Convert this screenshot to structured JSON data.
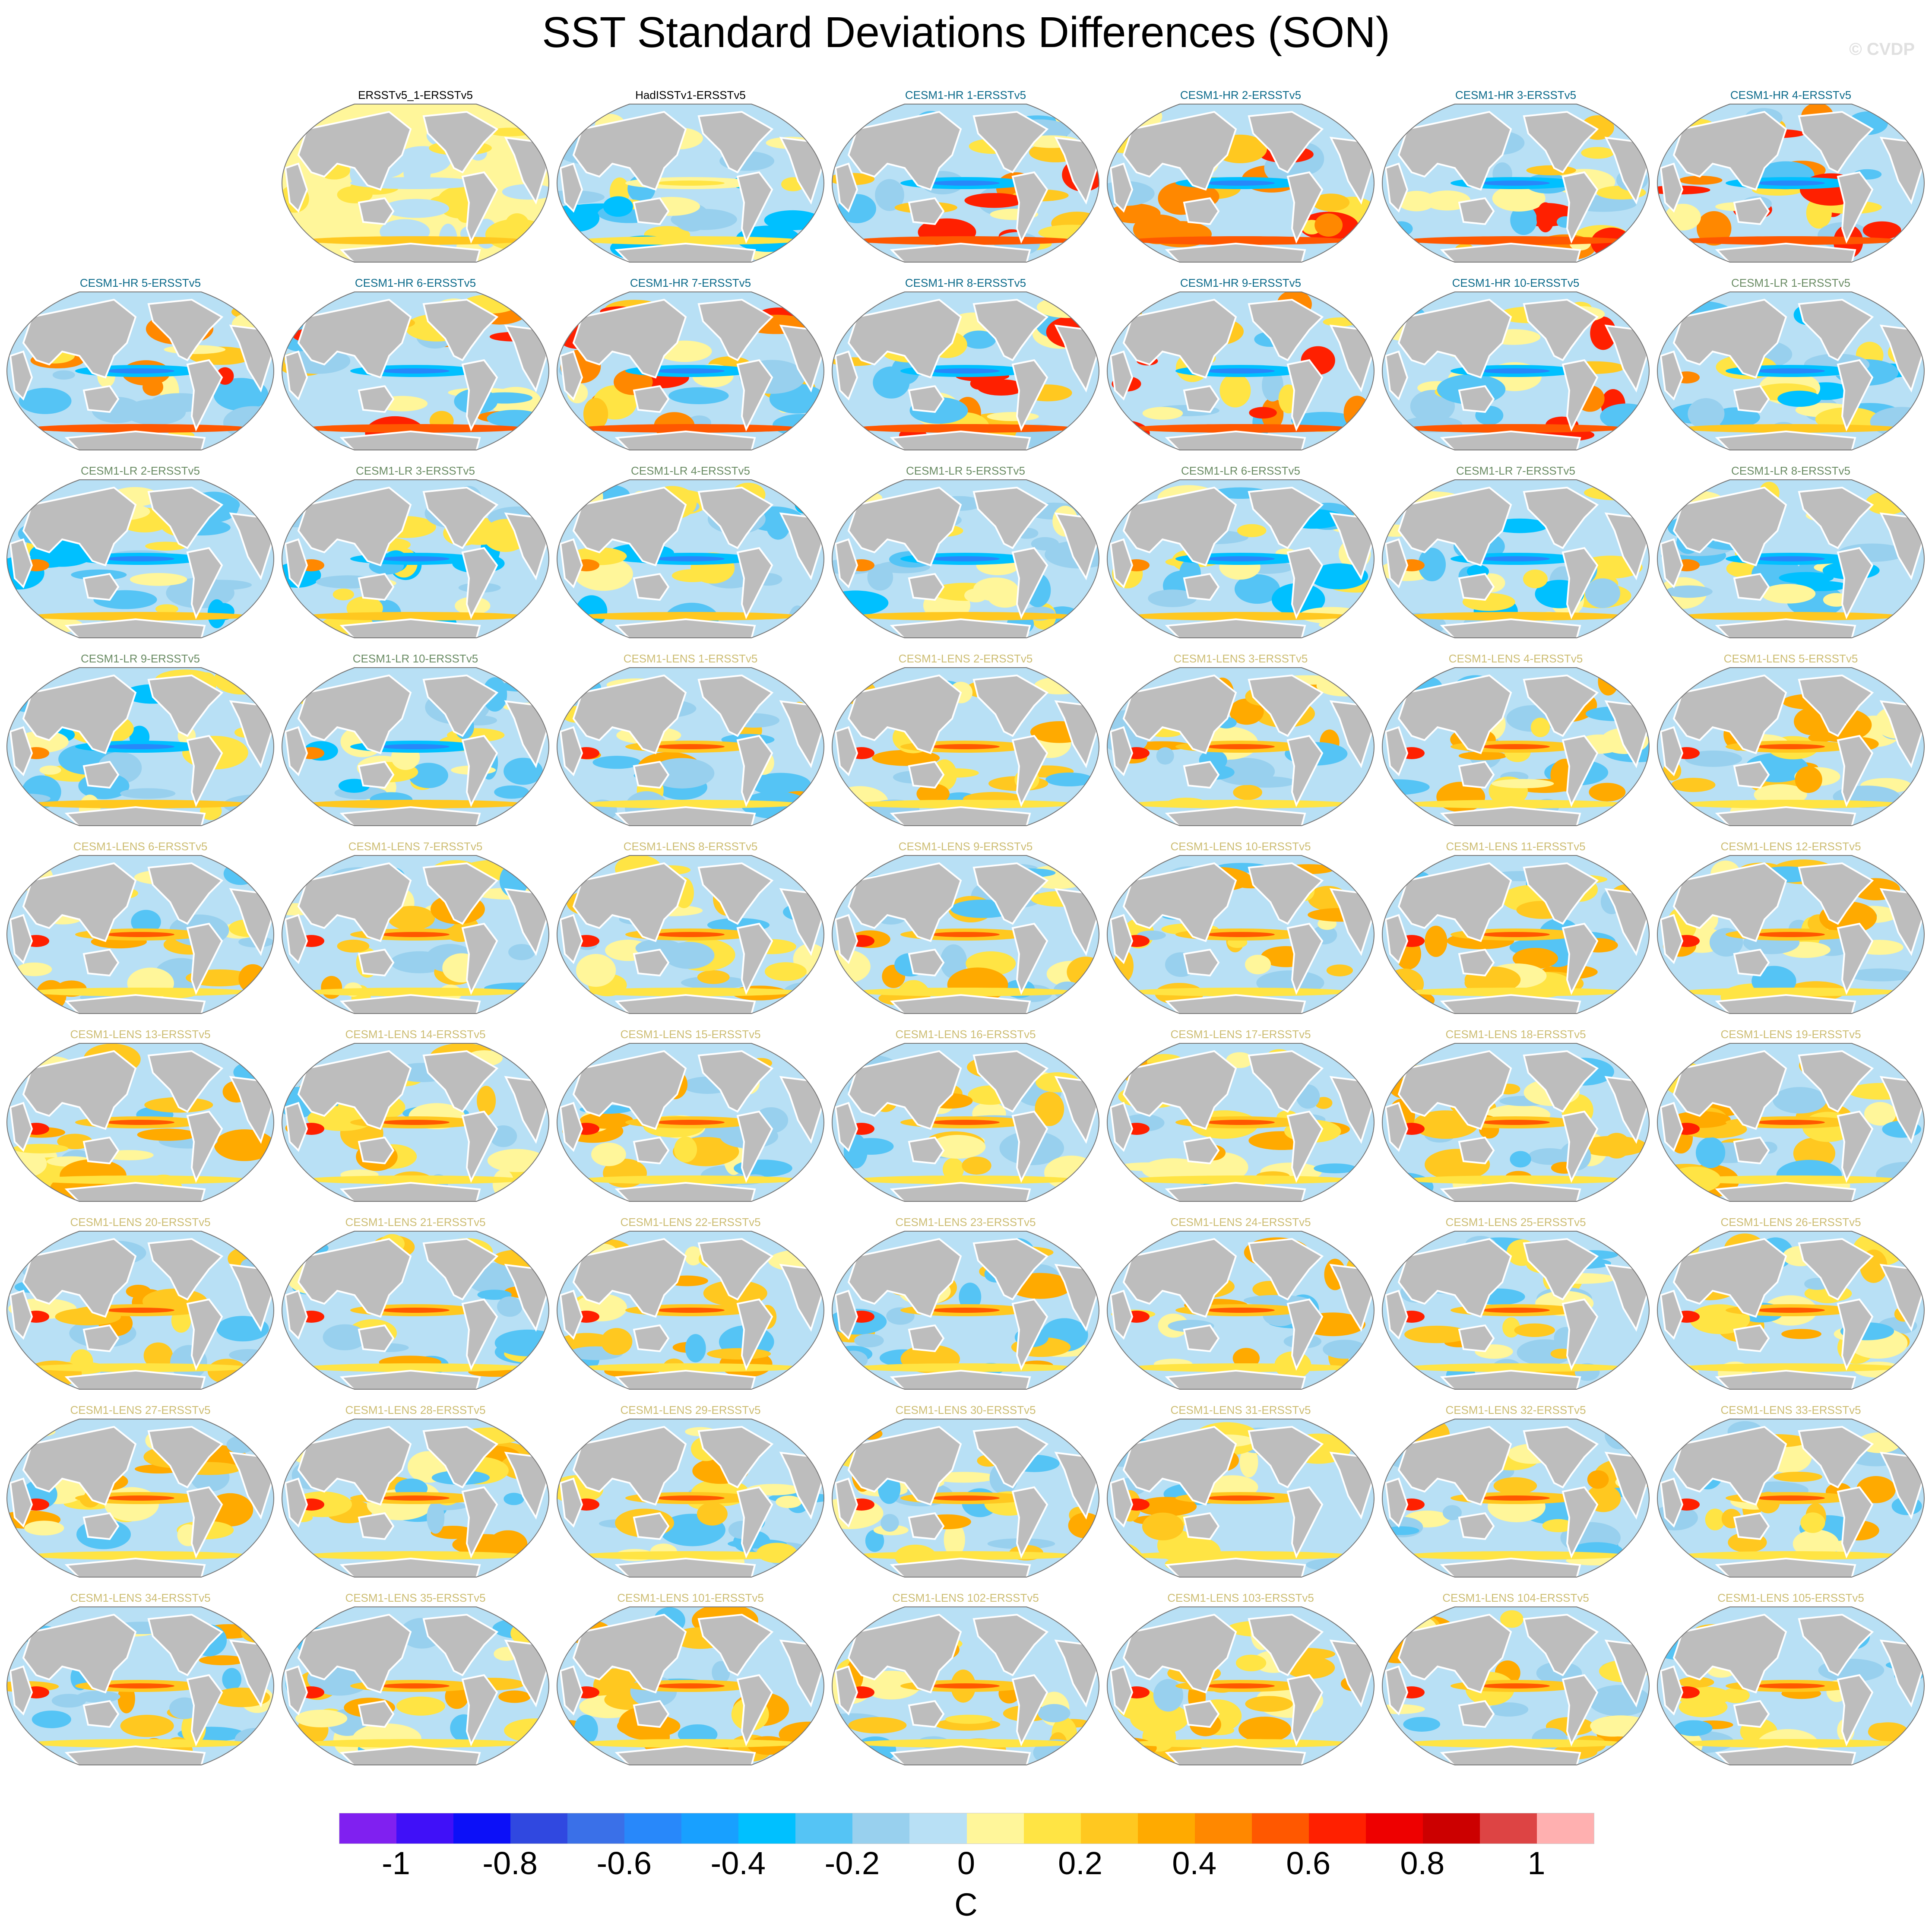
{
  "chart_data": {
    "type": "heatmap",
    "title": "SST Standard Deviations Differences (SON)",
    "watermark": "© CVDP",
    "unit": "C",
    "layout": {
      "columns": 7,
      "rows": 9,
      "first_row_offset": 1
    },
    "groups": {
      "obs": {
        "title_color": "#000000"
      },
      "HR": {
        "title_color": "#0b6a8a"
      },
      "LR": {
        "title_color": "#6a8c64"
      },
      "LENS": {
        "title_color": "#cdbd73"
      }
    },
    "panels": [
      {
        "title": "ERSSTv5_1-ERSSTv5",
        "group": "obs",
        "style": "obs1"
      },
      {
        "title": "HadISSTv1-ERSSTv5",
        "group": "obs",
        "style": "obs2"
      },
      {
        "title": "CESM1-HR 1-ERSSTv5",
        "group": "HR"
      },
      {
        "title": "CESM1-HR 2-ERSSTv5",
        "group": "HR"
      },
      {
        "title": "CESM1-HR 3-ERSSTv5",
        "group": "HR"
      },
      {
        "title": "CESM1-HR 4-ERSSTv5",
        "group": "HR"
      },
      {
        "title": "CESM1-HR 5-ERSSTv5",
        "group": "HR"
      },
      {
        "title": "CESM1-HR 6-ERSSTv5",
        "group": "HR"
      },
      {
        "title": "CESM1-HR 7-ERSSTv5",
        "group": "HR"
      },
      {
        "title": "CESM1-HR 8-ERSSTv5",
        "group": "HR"
      },
      {
        "title": "CESM1-HR 9-ERSSTv5",
        "group": "HR"
      },
      {
        "title": "CESM1-HR 10-ERSSTv5",
        "group": "HR"
      },
      {
        "title": "CESM1-LR 1-ERSSTv5",
        "group": "LR"
      },
      {
        "title": "CESM1-LR 2-ERSSTv5",
        "group": "LR"
      },
      {
        "title": "CESM1-LR 3-ERSSTv5",
        "group": "LR"
      },
      {
        "title": "CESM1-LR 4-ERSSTv5",
        "group": "LR"
      },
      {
        "title": "CESM1-LR 5-ERSSTv5",
        "group": "LR"
      },
      {
        "title": "CESM1-LR 6-ERSSTv5",
        "group": "LR"
      },
      {
        "title": "CESM1-LR 7-ERSSTv5",
        "group": "LR"
      },
      {
        "title": "CESM1-LR 8-ERSSTv5",
        "group": "LR"
      },
      {
        "title": "CESM1-LR 9-ERSSTv5",
        "group": "LR"
      },
      {
        "title": "CESM1-LR 10-ERSSTv5",
        "group": "LR"
      },
      {
        "title": "CESM1-LENS 1-ERSSTv5",
        "group": "LENS"
      },
      {
        "title": "CESM1-LENS 2-ERSSTv5",
        "group": "LENS"
      },
      {
        "title": "CESM1-LENS 3-ERSSTv5",
        "group": "LENS"
      },
      {
        "title": "CESM1-LENS 4-ERSSTv5",
        "group": "LENS"
      },
      {
        "title": "CESM1-LENS 5-ERSSTv5",
        "group": "LENS"
      },
      {
        "title": "CESM1-LENS 6-ERSSTv5",
        "group": "LENS"
      },
      {
        "title": "CESM1-LENS 7-ERSSTv5",
        "group": "LENS"
      },
      {
        "title": "CESM1-LENS 8-ERSSTv5",
        "group": "LENS"
      },
      {
        "title": "CESM1-LENS 9-ERSSTv5",
        "group": "LENS"
      },
      {
        "title": "CESM1-LENS 10-ERSSTv5",
        "group": "LENS"
      },
      {
        "title": "CESM1-LENS 11-ERSSTv5",
        "group": "LENS"
      },
      {
        "title": "CESM1-LENS 12-ERSSTv5",
        "group": "LENS"
      },
      {
        "title": "CESM1-LENS 13-ERSSTv5",
        "group": "LENS"
      },
      {
        "title": "CESM1-LENS 14-ERSSTv5",
        "group": "LENS"
      },
      {
        "title": "CESM1-LENS 15-ERSSTv5",
        "group": "LENS"
      },
      {
        "title": "CESM1-LENS 16-ERSSTv5",
        "group": "LENS"
      },
      {
        "title": "CESM1-LENS 17-ERSSTv5",
        "group": "LENS"
      },
      {
        "title": "CESM1-LENS 18-ERSSTv5",
        "group": "LENS"
      },
      {
        "title": "CESM1-LENS 19-ERSSTv5",
        "group": "LENS"
      },
      {
        "title": "CESM1-LENS 20-ERSSTv5",
        "group": "LENS"
      },
      {
        "title": "CESM1-LENS 21-ERSSTv5",
        "group": "LENS"
      },
      {
        "title": "CESM1-LENS 22-ERSSTv5",
        "group": "LENS"
      },
      {
        "title": "CESM1-LENS 23-ERSSTv5",
        "group": "LENS"
      },
      {
        "title": "CESM1-LENS 24-ERSSTv5",
        "group": "LENS"
      },
      {
        "title": "CESM1-LENS 25-ERSSTv5",
        "group": "LENS"
      },
      {
        "title": "CESM1-LENS 26-ERSSTv5",
        "group": "LENS"
      },
      {
        "title": "CESM1-LENS 27-ERSSTv5",
        "group": "LENS"
      },
      {
        "title": "CESM1-LENS 28-ERSSTv5",
        "group": "LENS"
      },
      {
        "title": "CESM1-LENS 29-ERSSTv5",
        "group": "LENS"
      },
      {
        "title": "CESM1-LENS 30-ERSSTv5",
        "group": "LENS"
      },
      {
        "title": "CESM1-LENS 31-ERSSTv5",
        "group": "LENS"
      },
      {
        "title": "CESM1-LENS 32-ERSSTv5",
        "group": "LENS"
      },
      {
        "title": "CESM1-LENS 33-ERSSTv5",
        "group": "LENS"
      },
      {
        "title": "CESM1-LENS 34-ERSSTv5",
        "group": "LENS"
      },
      {
        "title": "CESM1-LENS 35-ERSSTv5",
        "group": "LENS"
      },
      {
        "title": "CESM1-LENS 101-ERSSTv5",
        "group": "LENS"
      },
      {
        "title": "CESM1-LENS 102-ERSSTv5",
        "group": "LENS"
      },
      {
        "title": "CESM1-LENS 103-ERSSTv5",
        "group": "LENS"
      },
      {
        "title": "CESM1-LENS 104-ERSSTv5",
        "group": "LENS"
      },
      {
        "title": "CESM1-LENS 105-ERSSTv5",
        "group": "LENS"
      }
    ],
    "colorbar": {
      "range": [
        -1.1,
        1.1
      ],
      "levels": [
        -1,
        -0.9,
        -0.8,
        -0.7,
        -0.6,
        -0.5,
        -0.4,
        -0.3,
        -0.2,
        -0.1,
        0,
        0.1,
        0.2,
        0.3,
        0.4,
        0.5,
        0.6,
        0.7,
        0.8,
        0.9,
        1
      ],
      "colors": [
        "#8020f0",
        "#4010f8",
        "#0c10f8",
        "#3048e0",
        "#3a70e8",
        "#2888fa",
        "#18a0ff",
        "#00c0ff",
        "#55c4f5",
        "#98d0ee",
        "#b8e0f5",
        "#fff69a",
        "#ffe444",
        "#ffc820",
        "#ffaa00",
        "#ff8800",
        "#ff5800",
        "#ff2000",
        "#ee0000",
        "#cc0000",
        "#dd4444",
        "#ffb0b0"
      ],
      "tick_labels": [
        "-1",
        "-0.8",
        "-0.6",
        "-0.4",
        "-0.2",
        "0",
        "0.2",
        "0.4",
        "0.6",
        "0.8",
        "1"
      ],
      "tick_values": [
        -1,
        -0.8,
        -0.6,
        -0.4,
        -0.2,
        0,
        0.2,
        0.4,
        0.6,
        0.8,
        1
      ]
    },
    "land_color": "#bdbdbd"
  }
}
